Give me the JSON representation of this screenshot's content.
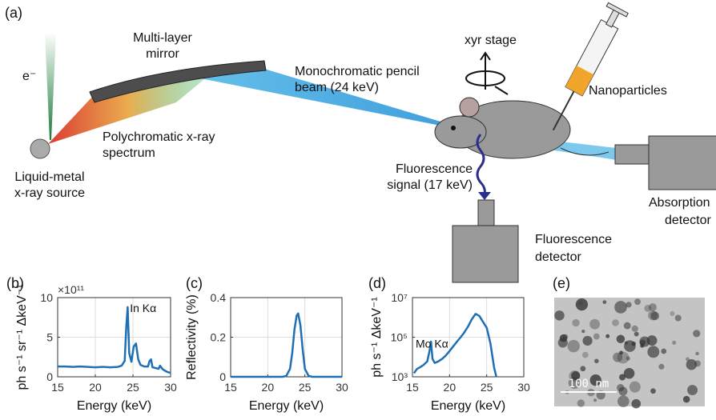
{
  "diagram": {
    "panel_label": "(a)",
    "electron_label": "e⁻",
    "mirror_label": [
      "Multi-layer",
      "mirror"
    ],
    "source_label": [
      "Liquid-metal",
      "x-ray source"
    ],
    "polychromatic_label": [
      "Polychromatic x-ray",
      "spectrum"
    ],
    "beam_label": [
      "Monochromatic pencil",
      "beam (24 keV)"
    ],
    "stage_label": "xyr stage",
    "nanoparticles_label": "Nanoparticles",
    "fluorescence_signal_label": [
      "Fluorescence",
      "signal (17 keV)"
    ],
    "fluorescence_detector_label": [
      "Fluorescence",
      "detector"
    ],
    "absorption_detector_label": [
      "Absorption",
      "detector"
    ]
  },
  "chart_data": [
    {
      "type": "line",
      "panel_label": "(b)",
      "x_label": "Energy (keV)",
      "y_label": "ph s⁻¹ sr⁻¹ ΔkeV⁻¹",
      "y_scale_label": "×10¹¹",
      "annotation": "In Kα",
      "color": "#1f6fb5",
      "grid": true,
      "xlim": [
        15,
        30
      ],
      "xticks": [
        15,
        20,
        25,
        30
      ],
      "ylim": [
        0,
        10
      ],
      "yticks": [
        0,
        5,
        10
      ],
      "x": [
        15,
        16,
        17,
        18,
        19,
        20,
        21,
        22,
        23,
        23.5,
        23.9,
        24.1,
        24.3,
        24.5,
        24.8,
        25.1,
        25.4,
        25.7,
        26,
        26.5,
        27,
        27.2,
        27.4,
        27.6,
        28,
        28.4,
        28.6,
        28.9,
        29.2,
        29.6,
        30
      ],
      "values": [
        1.3,
        1.3,
        1.25,
        1.3,
        1.25,
        1.2,
        1.25,
        1.2,
        1.25,
        1.4,
        2,
        6,
        8.8,
        3,
        1.9,
        3.8,
        4.2,
        2.2,
        1.5,
        1.3,
        1.3,
        2,
        2.2,
        1.2,
        1.1,
        1.0,
        1.4,
        1.0,
        0.8,
        0.6,
        0.5
      ]
    },
    {
      "type": "line",
      "panel_label": "(c)",
      "x_label": "Energy (keV)",
      "y_label": "Reflectivity (%)",
      "color": "#1f6fb5",
      "grid": true,
      "xlim": [
        15,
        30
      ],
      "xticks": [
        15,
        20,
        25,
        30
      ],
      "ylim": [
        0,
        0.4
      ],
      "yticks": [
        0,
        0.2,
        0.4
      ],
      "x": [
        15,
        20,
        22,
        22.5,
        23,
        23.3,
        23.6,
        23.9,
        24.1,
        24.4,
        24.7,
        25,
        25.5,
        26,
        28,
        30
      ],
      "values": [
        0,
        0,
        0,
        0.005,
        0.04,
        0.12,
        0.24,
        0.31,
        0.32,
        0.26,
        0.14,
        0.04,
        0.005,
        0,
        0,
        0
      ]
    },
    {
      "type": "line",
      "panel_label": "(d)",
      "x_label": "Energy (keV)",
      "y_label": "ph s⁻¹ ΔkeV⁻¹",
      "annotation": "Mo Kα",
      "color": "#1f6fb5",
      "grid": true,
      "log_y": true,
      "xlim": [
        15,
        30
      ],
      "xticks": [
        15,
        20,
        25,
        30
      ],
      "ylim": [
        1000,
        10000000
      ],
      "yticks": [
        {
          "value": 1000,
          "label": "10³"
        },
        {
          "value": 100000,
          "label": "10⁵"
        },
        {
          "value": 10000000,
          "label": "10⁷"
        }
      ],
      "x": [
        15.2,
        15.6,
        16,
        16.5,
        17,
        17.3,
        17.5,
        17.7,
        18,
        18.5,
        19,
        19.5,
        20,
        20.5,
        21,
        21.5,
        22,
        22.5,
        23,
        23.5,
        24,
        24.5,
        25,
        25.5,
        26,
        26.3
      ],
      "values": [
        1500,
        2500,
        3000,
        4000,
        6000,
        20000,
        60000,
        8000,
        5000,
        6000,
        8000,
        12000,
        20000,
        35000,
        60000,
        100000,
        180000,
        350000,
        800000,
        1500000,
        1200000,
        600000,
        300000,
        50000,
        3000,
        1000
      ]
    }
  ],
  "image": {
    "panel_label": "(e)",
    "scale_bar_label": "100 nm"
  }
}
